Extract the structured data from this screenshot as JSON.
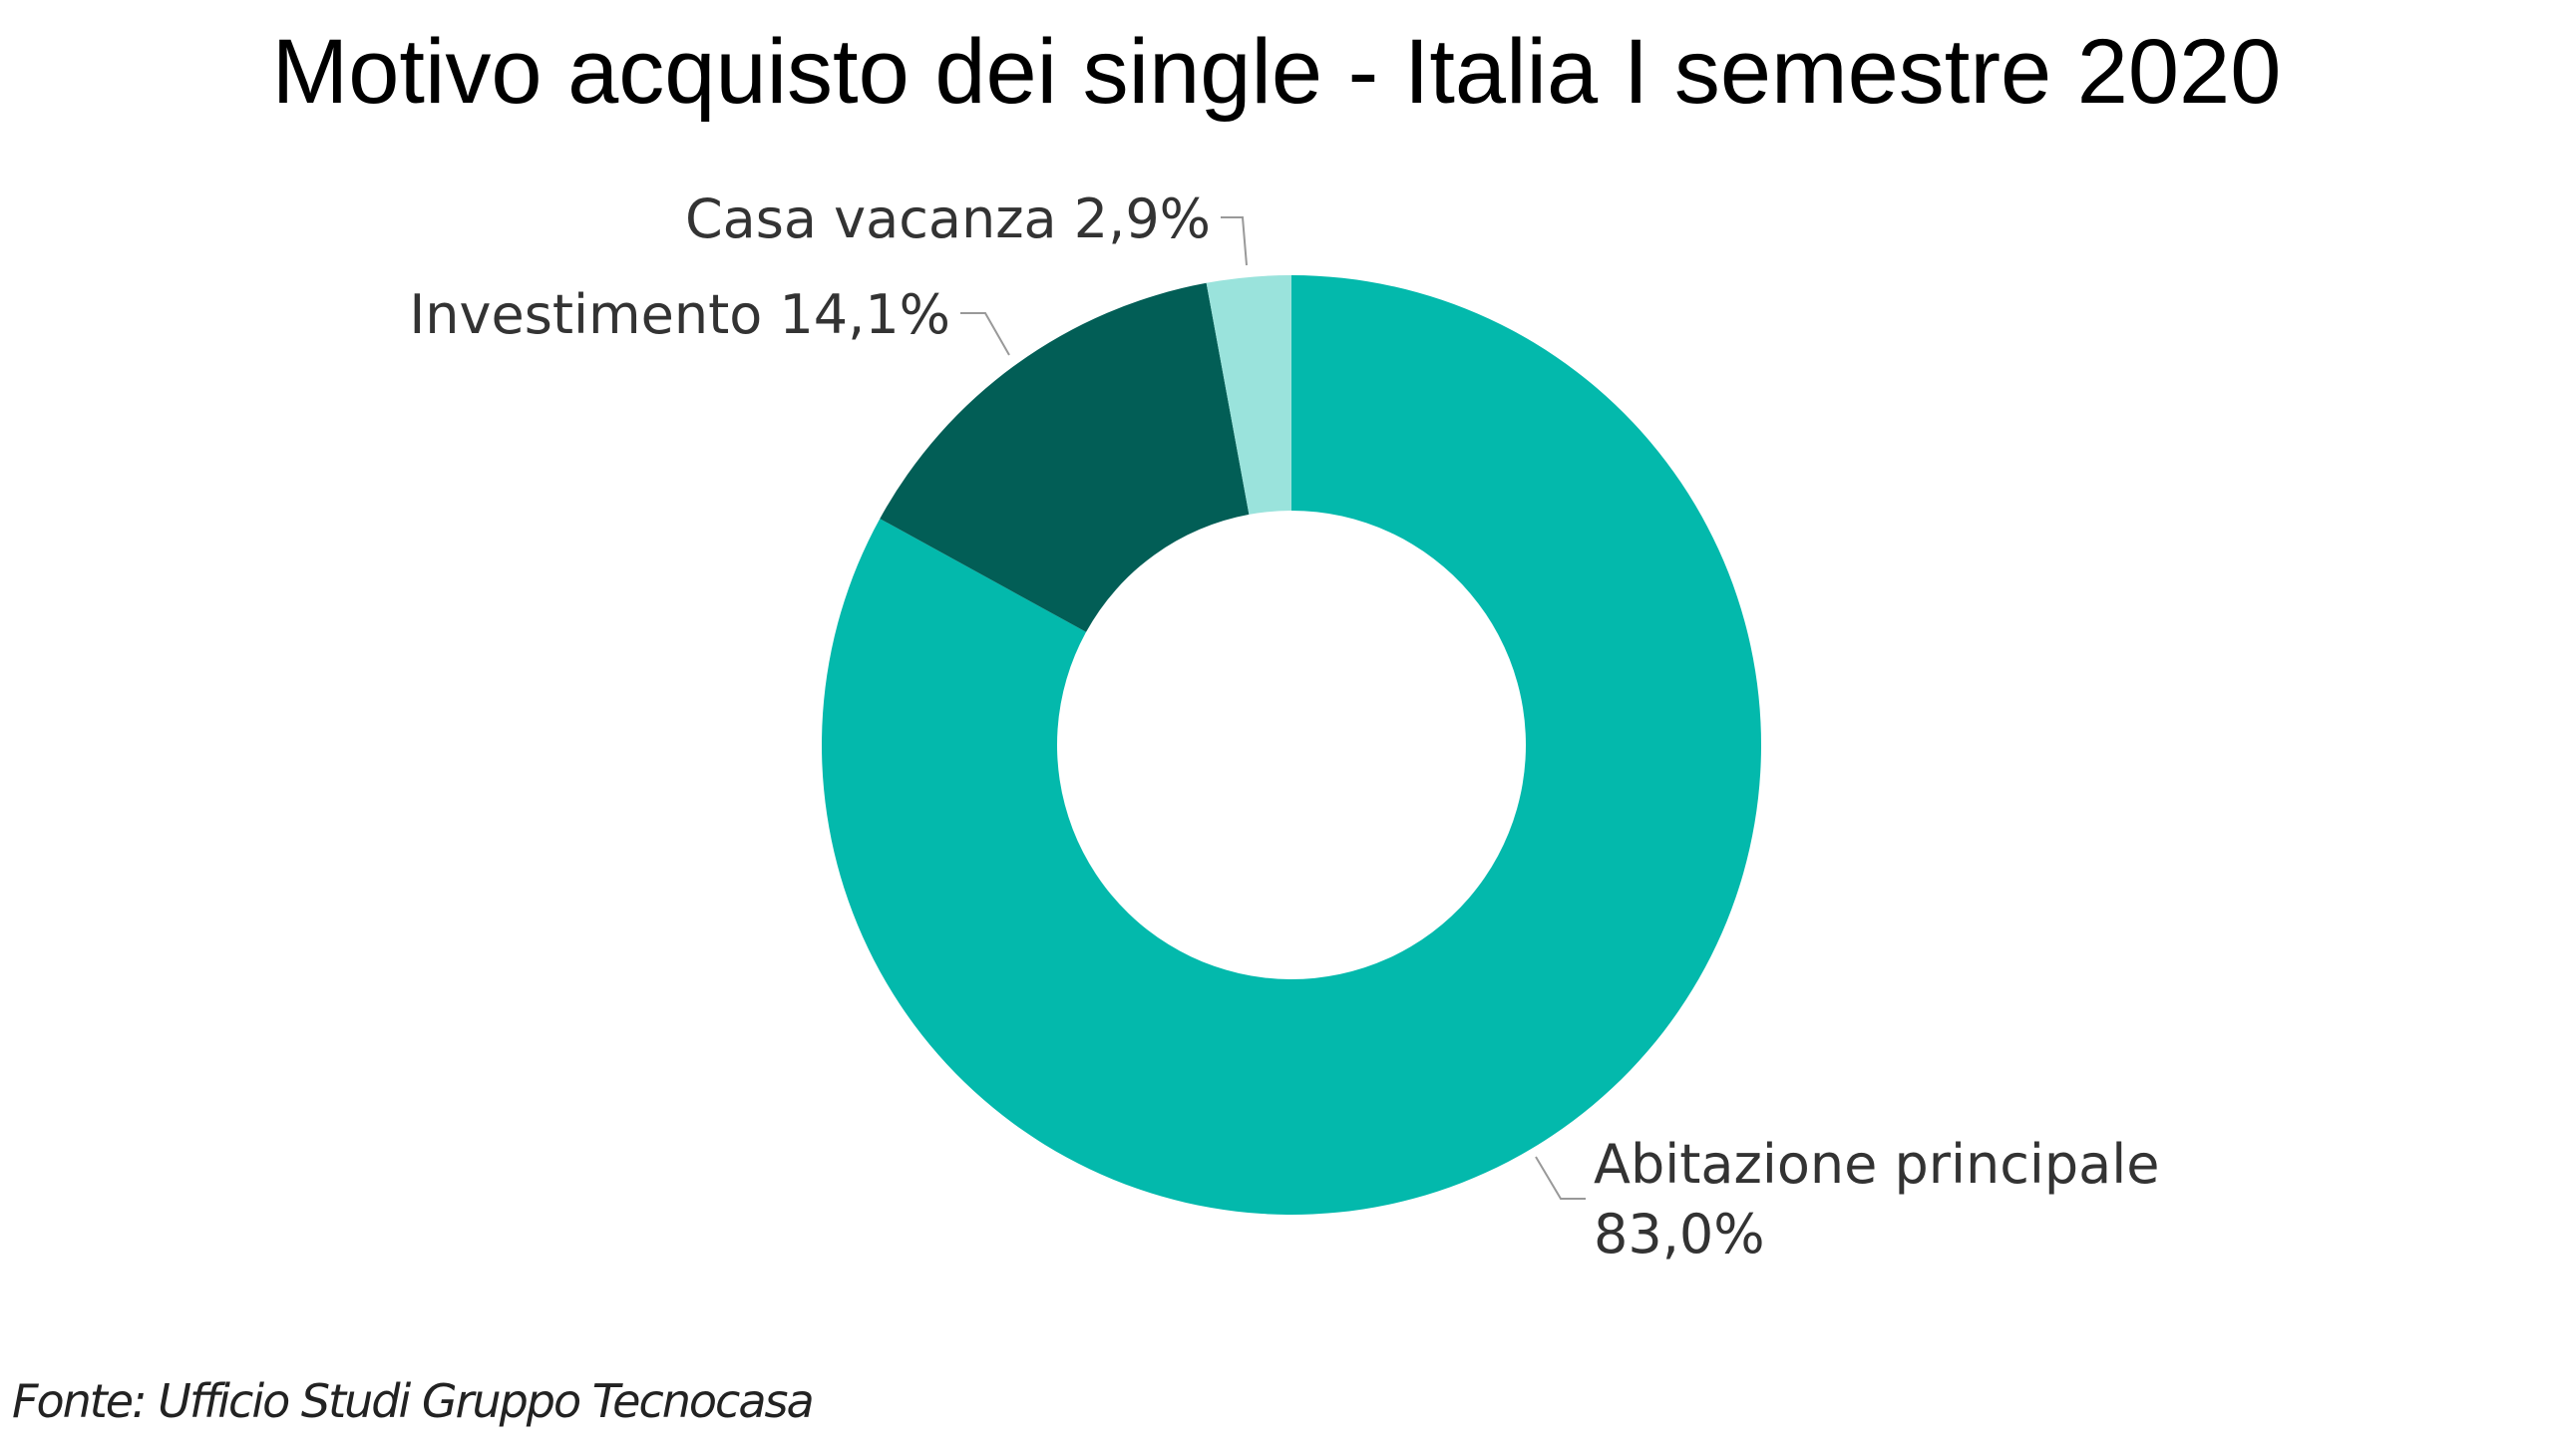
{
  "chart_data": {
    "type": "pie",
    "subtype": "donut",
    "title": "Motivo acquisto dei single - Italia I semestre 2020",
    "categories": [
      "Abitazione principale",
      "Investimento",
      "Casa vacanza"
    ],
    "values": [
      83.0,
      14.1,
      2.9
    ],
    "value_labels": [
      "83,0%",
      "14,1%",
      "2,9%"
    ],
    "colors": [
      "#03B9AC",
      "#025E56",
      "#9AE3DC"
    ],
    "start": "top, clockwise",
    "legend": "none (data labels)"
  },
  "source": "Fonte: Ufficio Studi Gruppo Tecnocasa"
}
